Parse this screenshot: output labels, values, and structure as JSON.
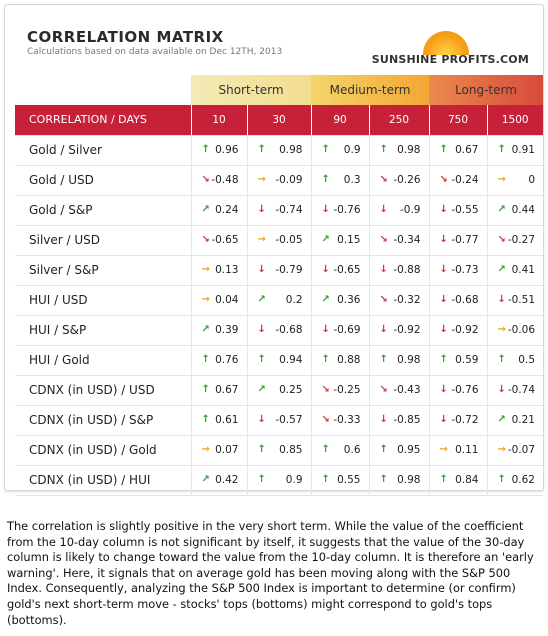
{
  "header": {
    "title": "CORRELATION MATRIX",
    "subtitle": "Calculations based on data available on Dec 12TH, 2013",
    "logo_text": "SUNSHINE PROFITS.COM"
  },
  "terms": {
    "short": "Short-term",
    "medium": "Medium-term",
    "long": "Long-term"
  },
  "table": {
    "label_header": "CORRELATION / DAYS",
    "days": [
      "10",
      "30",
      "90",
      "250",
      "750",
      "1500"
    ],
    "rows": [
      {
        "label": "Gold / Silver",
        "cells": [
          {
            "dir": "up",
            "v": "0.96"
          },
          {
            "dir": "up",
            "v": "0.98"
          },
          {
            "dir": "up",
            "v": "0.9"
          },
          {
            "dir": "up",
            "v": "0.98"
          },
          {
            "dir": "up",
            "v": "0.67"
          },
          {
            "dir": "up",
            "v": "0.91"
          }
        ]
      },
      {
        "label": "Gold / USD",
        "cells": [
          {
            "dir": "down-diag",
            "v": "-0.48"
          },
          {
            "dir": "right",
            "v": "-0.09"
          },
          {
            "dir": "up",
            "v": "0.3"
          },
          {
            "dir": "down-diag",
            "v": "-0.26"
          },
          {
            "dir": "down-diag",
            "v": "-0.24"
          },
          {
            "dir": "right",
            "v": "0"
          }
        ]
      },
      {
        "label": "Gold / S&P",
        "cells": [
          {
            "dir": "up-diag",
            "v": "0.24"
          },
          {
            "dir": "down",
            "v": "-0.74"
          },
          {
            "dir": "down",
            "v": "-0.76"
          },
          {
            "dir": "down",
            "v": "-0.9"
          },
          {
            "dir": "down",
            "v": "-0.55"
          },
          {
            "dir": "up-diag",
            "v": "0.44"
          }
        ]
      },
      {
        "label": "Silver / USD",
        "cells": [
          {
            "dir": "down-diag",
            "v": "-0.65"
          },
          {
            "dir": "right",
            "v": "-0.05"
          },
          {
            "dir": "up-diag",
            "v": "0.15"
          },
          {
            "dir": "down-diag",
            "v": "-0.34"
          },
          {
            "dir": "down",
            "v": "-0.77"
          },
          {
            "dir": "down-diag",
            "v": "-0.27"
          }
        ]
      },
      {
        "label": "Silver / S&P",
        "cells": [
          {
            "dir": "right",
            "v": "0.13"
          },
          {
            "dir": "down",
            "v": "-0.79"
          },
          {
            "dir": "down",
            "v": "-0.65"
          },
          {
            "dir": "down",
            "v": "-0.88"
          },
          {
            "dir": "down",
            "v": "-0.73"
          },
          {
            "dir": "up-diag",
            "v": "0.41"
          }
        ]
      },
      {
        "label": "HUI / USD",
        "cells": [
          {
            "dir": "right",
            "v": "0.04"
          },
          {
            "dir": "up-diag",
            "v": "0.2"
          },
          {
            "dir": "up-diag",
            "v": "0.36"
          },
          {
            "dir": "down-diag",
            "v": "-0.32"
          },
          {
            "dir": "down",
            "v": "-0.68"
          },
          {
            "dir": "down",
            "v": "-0.51"
          }
        ]
      },
      {
        "label": "HUI / S&P",
        "cells": [
          {
            "dir": "up-diag",
            "v": "0.39"
          },
          {
            "dir": "down",
            "v": "-0.68"
          },
          {
            "dir": "down",
            "v": "-0.69"
          },
          {
            "dir": "down",
            "v": "-0.92"
          },
          {
            "dir": "down",
            "v": "-0.92"
          },
          {
            "dir": "right",
            "v": "-0.06"
          }
        ]
      },
      {
        "label": "HUI / Gold",
        "cells": [
          {
            "dir": "up",
            "v": "0.76"
          },
          {
            "dir": "up",
            "v": "0.94"
          },
          {
            "dir": "up",
            "v": "0.88"
          },
          {
            "dir": "up",
            "v": "0.98"
          },
          {
            "dir": "up",
            "v": "0.59"
          },
          {
            "dir": "up",
            "v": "0.5"
          }
        ]
      },
      {
        "label": "CDNX (in USD) / USD",
        "cells": [
          {
            "dir": "up",
            "v": "0.67"
          },
          {
            "dir": "up-diag",
            "v": "0.25"
          },
          {
            "dir": "down-diag",
            "v": "-0.25"
          },
          {
            "dir": "down-diag",
            "v": "-0.43"
          },
          {
            "dir": "down",
            "v": "-0.76"
          },
          {
            "dir": "down",
            "v": "-0.74"
          }
        ]
      },
      {
        "label": "CDNX (in USD) / S&P",
        "cells": [
          {
            "dir": "up",
            "v": "0.61"
          },
          {
            "dir": "down",
            "v": "-0.57"
          },
          {
            "dir": "down-diag",
            "v": "-0.33"
          },
          {
            "dir": "down",
            "v": "-0.85"
          },
          {
            "dir": "down",
            "v": "-0.72"
          },
          {
            "dir": "up-diag",
            "v": "0.21"
          }
        ]
      },
      {
        "label": "CDNX (in USD) / Gold",
        "cells": [
          {
            "dir": "right",
            "v": "0.07"
          },
          {
            "dir": "up",
            "v": "0.85"
          },
          {
            "dir": "up",
            "v": "0.6"
          },
          {
            "dir": "up",
            "v": "0.95"
          },
          {
            "dir": "right",
            "v": "0.11"
          },
          {
            "dir": "right",
            "v": "-0.07"
          }
        ]
      },
      {
        "label": "CDNX (in USD) / HUI",
        "cells": [
          {
            "dir": "up-diag",
            "v": "0.42"
          },
          {
            "dir": "up",
            "v": "0.9"
          },
          {
            "dir": "up",
            "v": "0.55"
          },
          {
            "dir": "up",
            "v": "0.98"
          },
          {
            "dir": "up",
            "v": "0.84"
          },
          {
            "dir": "up",
            "v": "0.62"
          }
        ]
      }
    ]
  },
  "note": "The correlation is slightly positive in the very short term. While the value of the coefficient from the 10-day column is not significant by itself, it suggests that the value of the 30-day column is likely to change toward the value from the 10-day column. It is therefore an 'early warning'. Here, it signals that on average gold has been moving along with the S&P 500 Index. Consequently, analyzing the S&P 500 Index is important to determine (or confirm) gold's next short-term move - stocks' tops (bottoms) might correspond to gold's tops (bottoms)."
}
